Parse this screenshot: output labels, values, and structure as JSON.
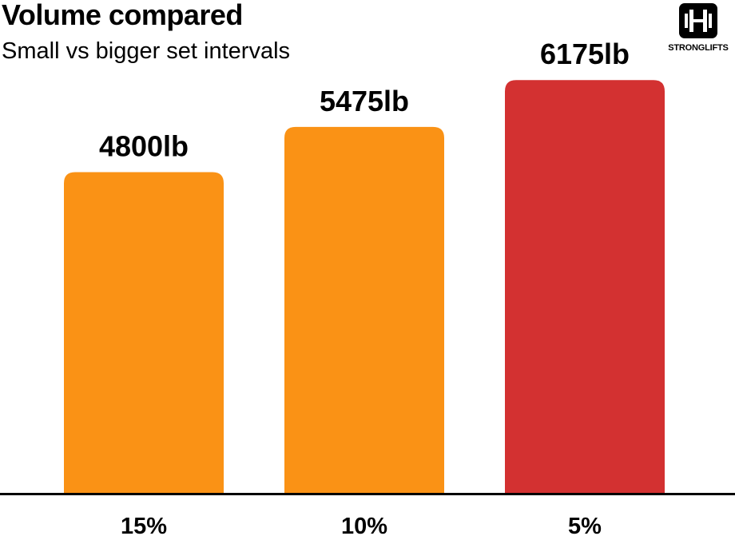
{
  "header": {
    "title": "Volume compared",
    "subtitle": "Small vs bigger set intervals"
  },
  "brand": {
    "logo_text": "STRONGLIFTS",
    "logo_icon": "barbell-icon"
  },
  "colors": {
    "orange": "#FA9215",
    "red": "#D33131",
    "axis": "#000000"
  },
  "chart_data": {
    "type": "bar",
    "categories": [
      "15%",
      "10%",
      "5%"
    ],
    "values": [
      4800,
      5475,
      6175
    ],
    "value_labels": [
      "4800lb",
      "5475lb",
      "6175lb"
    ],
    "bar_colors": [
      "#FA9215",
      "#FA9215",
      "#D33131"
    ],
    "title": "Volume compared",
    "subtitle": "Small vs bigger set intervals",
    "xlabel": "",
    "ylabel": "",
    "ylim": [
      0,
      7370
    ],
    "grid": false,
    "legend": "none"
  }
}
